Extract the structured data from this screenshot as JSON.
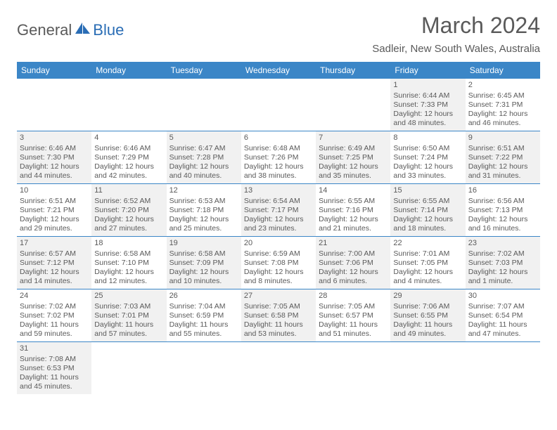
{
  "logo": {
    "part1": "General",
    "part2": "Blue"
  },
  "title": "March 2024",
  "location": "Sadleir, New South Wales, Australia",
  "colors": {
    "header_bg": "#3b86c7",
    "header_text": "#ffffff",
    "shade_bg": "#f1f1f1",
    "text": "#5a5a5a",
    "logo_blue": "#2a6db5"
  },
  "day_headers": [
    "Sunday",
    "Monday",
    "Tuesday",
    "Wednesday",
    "Thursday",
    "Friday",
    "Saturday"
  ],
  "weeks": [
    [
      {
        "day": "",
        "sunrise": "",
        "sunset": "",
        "daylight": "",
        "shade": false
      },
      {
        "day": "",
        "sunrise": "",
        "sunset": "",
        "daylight": "",
        "shade": false
      },
      {
        "day": "",
        "sunrise": "",
        "sunset": "",
        "daylight": "",
        "shade": false
      },
      {
        "day": "",
        "sunrise": "",
        "sunset": "",
        "daylight": "",
        "shade": false
      },
      {
        "day": "",
        "sunrise": "",
        "sunset": "",
        "daylight": "",
        "shade": false
      },
      {
        "day": "1",
        "sunrise": "Sunrise: 6:44 AM",
        "sunset": "Sunset: 7:33 PM",
        "daylight": "Daylight: 12 hours and 48 minutes.",
        "shade": true
      },
      {
        "day": "2",
        "sunrise": "Sunrise: 6:45 AM",
        "sunset": "Sunset: 7:31 PM",
        "daylight": "Daylight: 12 hours and 46 minutes.",
        "shade": false
      }
    ],
    [
      {
        "day": "3",
        "sunrise": "Sunrise: 6:46 AM",
        "sunset": "Sunset: 7:30 PM",
        "daylight": "Daylight: 12 hours and 44 minutes.",
        "shade": true
      },
      {
        "day": "4",
        "sunrise": "Sunrise: 6:46 AM",
        "sunset": "Sunset: 7:29 PM",
        "daylight": "Daylight: 12 hours and 42 minutes.",
        "shade": false
      },
      {
        "day": "5",
        "sunrise": "Sunrise: 6:47 AM",
        "sunset": "Sunset: 7:28 PM",
        "daylight": "Daylight: 12 hours and 40 minutes.",
        "shade": true
      },
      {
        "day": "6",
        "sunrise": "Sunrise: 6:48 AM",
        "sunset": "Sunset: 7:26 PM",
        "daylight": "Daylight: 12 hours and 38 minutes.",
        "shade": false
      },
      {
        "day": "7",
        "sunrise": "Sunrise: 6:49 AM",
        "sunset": "Sunset: 7:25 PM",
        "daylight": "Daylight: 12 hours and 35 minutes.",
        "shade": true
      },
      {
        "day": "8",
        "sunrise": "Sunrise: 6:50 AM",
        "sunset": "Sunset: 7:24 PM",
        "daylight": "Daylight: 12 hours and 33 minutes.",
        "shade": false
      },
      {
        "day": "9",
        "sunrise": "Sunrise: 6:51 AM",
        "sunset": "Sunset: 7:22 PM",
        "daylight": "Daylight: 12 hours and 31 minutes.",
        "shade": true
      }
    ],
    [
      {
        "day": "10",
        "sunrise": "Sunrise: 6:51 AM",
        "sunset": "Sunset: 7:21 PM",
        "daylight": "Daylight: 12 hours and 29 minutes.",
        "shade": false
      },
      {
        "day": "11",
        "sunrise": "Sunrise: 6:52 AM",
        "sunset": "Sunset: 7:20 PM",
        "daylight": "Daylight: 12 hours and 27 minutes.",
        "shade": true
      },
      {
        "day": "12",
        "sunrise": "Sunrise: 6:53 AM",
        "sunset": "Sunset: 7:18 PM",
        "daylight": "Daylight: 12 hours and 25 minutes.",
        "shade": false
      },
      {
        "day": "13",
        "sunrise": "Sunrise: 6:54 AM",
        "sunset": "Sunset: 7:17 PM",
        "daylight": "Daylight: 12 hours and 23 minutes.",
        "shade": true
      },
      {
        "day": "14",
        "sunrise": "Sunrise: 6:55 AM",
        "sunset": "Sunset: 7:16 PM",
        "daylight": "Daylight: 12 hours and 21 minutes.",
        "shade": false
      },
      {
        "day": "15",
        "sunrise": "Sunrise: 6:55 AM",
        "sunset": "Sunset: 7:14 PM",
        "daylight": "Daylight: 12 hours and 18 minutes.",
        "shade": true
      },
      {
        "day": "16",
        "sunrise": "Sunrise: 6:56 AM",
        "sunset": "Sunset: 7:13 PM",
        "daylight": "Daylight: 12 hours and 16 minutes.",
        "shade": false
      }
    ],
    [
      {
        "day": "17",
        "sunrise": "Sunrise: 6:57 AM",
        "sunset": "Sunset: 7:12 PM",
        "daylight": "Daylight: 12 hours and 14 minutes.",
        "shade": true
      },
      {
        "day": "18",
        "sunrise": "Sunrise: 6:58 AM",
        "sunset": "Sunset: 7:10 PM",
        "daylight": "Daylight: 12 hours and 12 minutes.",
        "shade": false
      },
      {
        "day": "19",
        "sunrise": "Sunrise: 6:58 AM",
        "sunset": "Sunset: 7:09 PM",
        "daylight": "Daylight: 12 hours and 10 minutes.",
        "shade": true
      },
      {
        "day": "20",
        "sunrise": "Sunrise: 6:59 AM",
        "sunset": "Sunset: 7:08 PM",
        "daylight": "Daylight: 12 hours and 8 minutes.",
        "shade": false
      },
      {
        "day": "21",
        "sunrise": "Sunrise: 7:00 AM",
        "sunset": "Sunset: 7:06 PM",
        "daylight": "Daylight: 12 hours and 6 minutes.",
        "shade": true
      },
      {
        "day": "22",
        "sunrise": "Sunrise: 7:01 AM",
        "sunset": "Sunset: 7:05 PM",
        "daylight": "Daylight: 12 hours and 4 minutes.",
        "shade": false
      },
      {
        "day": "23",
        "sunrise": "Sunrise: 7:02 AM",
        "sunset": "Sunset: 7:03 PM",
        "daylight": "Daylight: 12 hours and 1 minute.",
        "shade": true
      }
    ],
    [
      {
        "day": "24",
        "sunrise": "Sunrise: 7:02 AM",
        "sunset": "Sunset: 7:02 PM",
        "daylight": "Daylight: 11 hours and 59 minutes.",
        "shade": false
      },
      {
        "day": "25",
        "sunrise": "Sunrise: 7:03 AM",
        "sunset": "Sunset: 7:01 PM",
        "daylight": "Daylight: 11 hours and 57 minutes.",
        "shade": true
      },
      {
        "day": "26",
        "sunrise": "Sunrise: 7:04 AM",
        "sunset": "Sunset: 6:59 PM",
        "daylight": "Daylight: 11 hours and 55 minutes.",
        "shade": false
      },
      {
        "day": "27",
        "sunrise": "Sunrise: 7:05 AM",
        "sunset": "Sunset: 6:58 PM",
        "daylight": "Daylight: 11 hours and 53 minutes.",
        "shade": true
      },
      {
        "day": "28",
        "sunrise": "Sunrise: 7:05 AM",
        "sunset": "Sunset: 6:57 PM",
        "daylight": "Daylight: 11 hours and 51 minutes.",
        "shade": false
      },
      {
        "day": "29",
        "sunrise": "Sunrise: 7:06 AM",
        "sunset": "Sunset: 6:55 PM",
        "daylight": "Daylight: 11 hours and 49 minutes.",
        "shade": true
      },
      {
        "day": "30",
        "sunrise": "Sunrise: 7:07 AM",
        "sunset": "Sunset: 6:54 PM",
        "daylight": "Daylight: 11 hours and 47 minutes.",
        "shade": false
      }
    ],
    [
      {
        "day": "31",
        "sunrise": "Sunrise: 7:08 AM",
        "sunset": "Sunset: 6:53 PM",
        "daylight": "Daylight: 11 hours and 45 minutes.",
        "shade": true
      },
      {
        "day": "",
        "sunrise": "",
        "sunset": "",
        "daylight": "",
        "shade": false
      },
      {
        "day": "",
        "sunrise": "",
        "sunset": "",
        "daylight": "",
        "shade": false
      },
      {
        "day": "",
        "sunrise": "",
        "sunset": "",
        "daylight": "",
        "shade": false
      },
      {
        "day": "",
        "sunrise": "",
        "sunset": "",
        "daylight": "",
        "shade": false
      },
      {
        "day": "",
        "sunrise": "",
        "sunset": "",
        "daylight": "",
        "shade": false
      },
      {
        "day": "",
        "sunrise": "",
        "sunset": "",
        "daylight": "",
        "shade": false
      }
    ]
  ]
}
